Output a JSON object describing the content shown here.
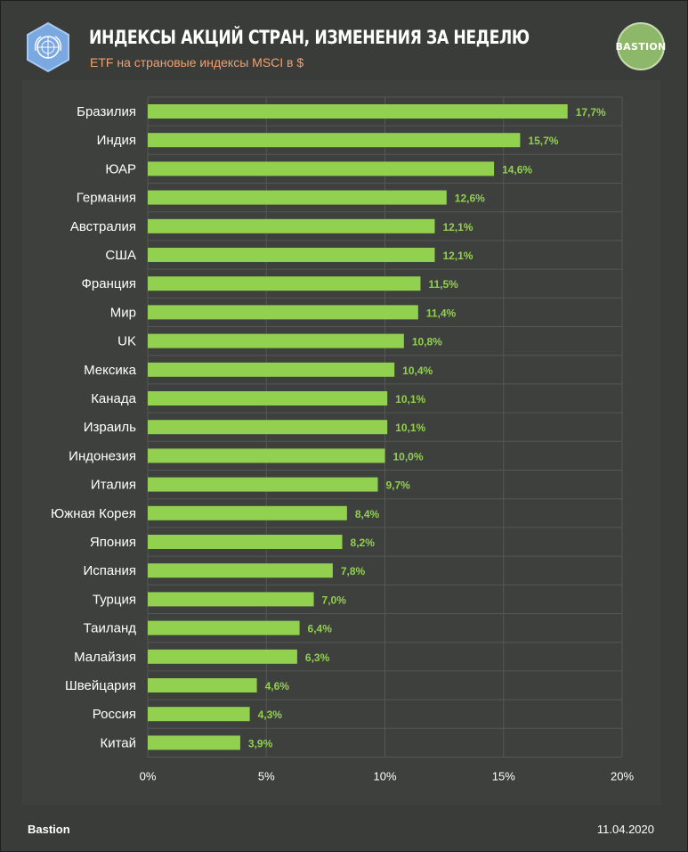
{
  "header": {
    "title": "ИНДЕКСЫ АКЦИЙ СТРАН, ИЗМЕНЕНИЯ ЗА НЕДЕЛЮ",
    "subtitle": "ETF на страновые индексы MSCI  в $",
    "brand_logo_text": "BASTION"
  },
  "footer": {
    "source": "Bastion",
    "date": "11.04.2020"
  },
  "colors": {
    "bar": "#92d050",
    "label": "#92d050",
    "grid": "#555755",
    "text": "#ffffff"
  },
  "chart_data": {
    "type": "bar",
    "orientation": "horizontal",
    "title": "ИНДЕКСЫ АКЦИЙ СТРАН, ИЗМЕНЕНИЯ ЗА НЕДЕЛЮ",
    "categories": [
      "Бразилия",
      "Индия",
      "ЮАР",
      "Германия",
      "Австралия",
      "США",
      "Франция",
      "Мир",
      "UK",
      "Мексика",
      "Канада",
      "Израиль",
      "Индонезия",
      "Италия",
      "Южная Корея",
      "Япония",
      "Испания",
      "Турция",
      "Таиланд",
      "Малайзия",
      "Швейцария",
      "Россия",
      "Китай"
    ],
    "values": [
      17.7,
      15.7,
      14.6,
      12.6,
      12.1,
      12.1,
      11.5,
      11.4,
      10.8,
      10.4,
      10.1,
      10.1,
      10.0,
      9.7,
      8.4,
      8.2,
      7.8,
      7.0,
      6.4,
      6.3,
      4.6,
      4.3,
      3.9
    ],
    "data_labels": [
      "17,7%",
      "15,7%",
      "14,6%",
      "12,6%",
      "12,1%",
      "12,1%",
      "11,5%",
      "11,4%",
      "10,8%",
      "10,4%",
      "10,1%",
      "10,1%",
      "10,0%",
      "9,7%",
      "8,4%",
      "8,2%",
      "7,8%",
      "7,0%",
      "6,4%",
      "6,3%",
      "4,6%",
      "4,3%",
      "3,9%"
    ],
    "xlim": [
      0,
      20
    ],
    "xticks": [
      0,
      5,
      10,
      15,
      20
    ],
    "xtick_labels": [
      "0%",
      "5%",
      "10%",
      "15%",
      "20%"
    ],
    "grid": true
  }
}
